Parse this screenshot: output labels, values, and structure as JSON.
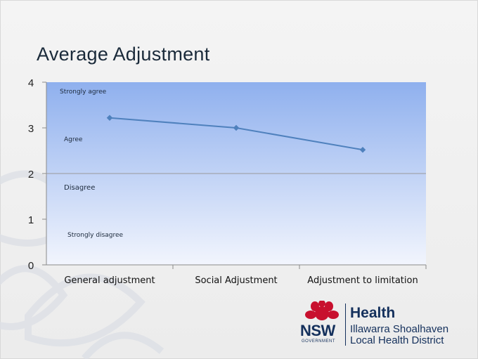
{
  "slide": {
    "title": "Average Adjustment"
  },
  "logo": {
    "nsw": "NSW",
    "government": "GOVERNMENT",
    "health": "Health",
    "line1": "Illawarra Shoalhaven",
    "line2": "Local Health District"
  },
  "colors": {
    "plot_top": "#8fb0ee",
    "plot_bottom": "#f2f5fd",
    "series": "#4f81bd"
  },
  "chart_data": {
    "type": "line",
    "title": "",
    "xlabel": "",
    "ylabel": "",
    "categories": [
      "General adjustment",
      "Social Adjustment",
      "Adjustment to limitation"
    ],
    "series": [
      {
        "values": [
          3.22,
          3.0,
          2.52
        ]
      }
    ],
    "ylim": [
      0,
      4
    ],
    "yticks": [
      "0",
      "1",
      "2",
      "3",
      "4"
    ],
    "grid": "horizontal line at 2",
    "annotations": [
      "Strongly agree",
      "Agree",
      "Disagree",
      "Strongly disagree"
    ]
  }
}
